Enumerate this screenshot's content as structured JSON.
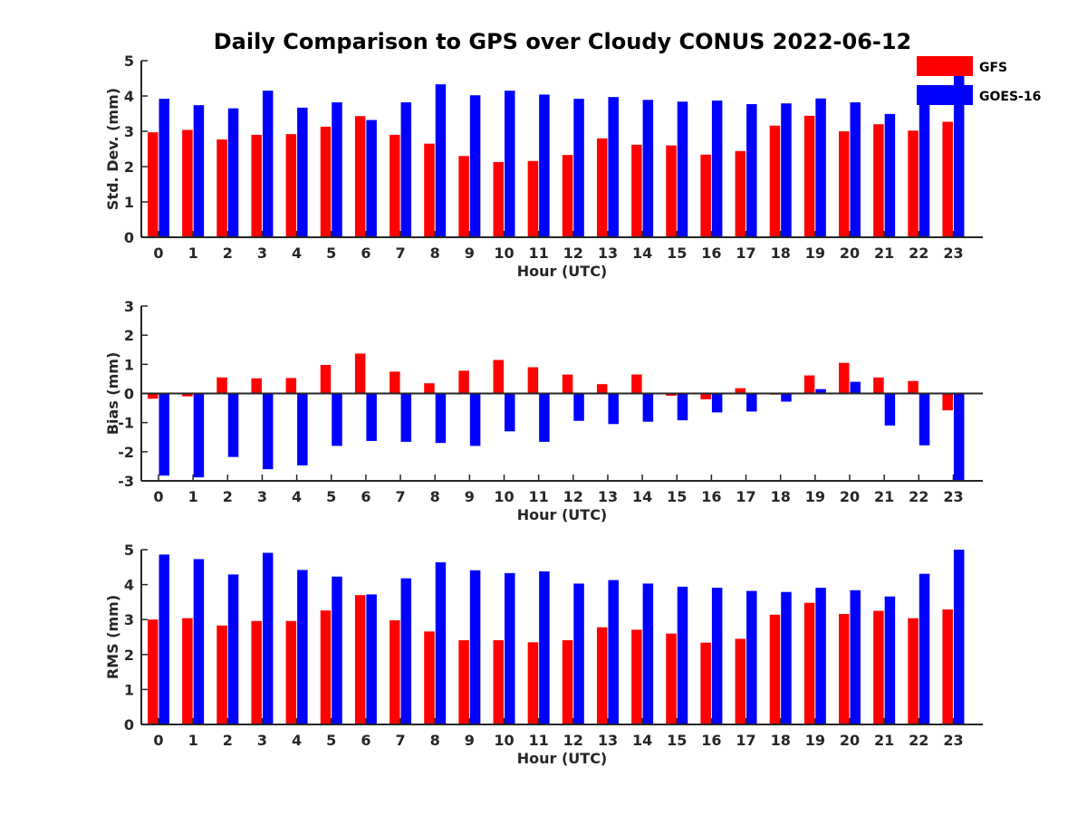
{
  "figure_title": "Daily Comparison to GPS over Cloudy CONUS 2022-06-12",
  "colors": {
    "GFS": "#ff0000",
    "GOES-16": "#0000ff",
    "axis": "#262626"
  },
  "legend": {
    "position": "top-right",
    "entries": [
      "GFS",
      "GOES-16"
    ]
  },
  "chart_data": [
    {
      "type": "bar",
      "title": "Daily Comparison to GPS over Cloudy CONUS 2022-06-12",
      "xlabel": "Hour (UTC)",
      "ylabel": "Std. Dev. (mm)",
      "ylim": [
        0,
        5
      ],
      "yticks": [
        0,
        1,
        2,
        3,
        4,
        5
      ],
      "categories": [
        "0",
        "1",
        "2",
        "3",
        "4",
        "5",
        "6",
        "7",
        "8",
        "9",
        "10",
        "11",
        "12",
        "13",
        "14",
        "15",
        "16",
        "17",
        "18",
        "19",
        "20",
        "21",
        "22",
        "23"
      ],
      "series": [
        {
          "name": "GFS",
          "values": [
            2.97,
            3.04,
            2.77,
            2.9,
            2.92,
            3.13,
            3.43,
            2.9,
            2.65,
            2.3,
            2.13,
            2.16,
            2.33,
            2.8,
            2.62,
            2.6,
            2.34,
            2.44,
            3.16,
            3.44,
            3.0,
            3.2,
            3.02,
            3.27
          ]
        },
        {
          "name": "GOES-16",
          "values": [
            3.92,
            3.74,
            3.65,
            4.15,
            3.67,
            3.82,
            3.32,
            3.82,
            4.33,
            4.02,
            4.15,
            4.04,
            3.92,
            3.97,
            3.89,
            3.84,
            3.87,
            3.77,
            3.79,
            3.93,
            3.82,
            3.49,
            3.93,
            4.6
          ]
        }
      ]
    },
    {
      "type": "bar",
      "title": "",
      "xlabel": "Hour (UTC)",
      "ylabel": "Bias (mm)",
      "ylim": [
        -3,
        3
      ],
      "yticks": [
        -3,
        -2,
        -1,
        0,
        1,
        2,
        3
      ],
      "categories": [
        "0",
        "1",
        "2",
        "3",
        "4",
        "5",
        "6",
        "7",
        "8",
        "9",
        "10",
        "11",
        "12",
        "13",
        "14",
        "15",
        "16",
        "17",
        "18",
        "19",
        "20",
        "21",
        "22",
        "23"
      ],
      "series": [
        {
          "name": "GFS",
          "values": [
            -0.18,
            -0.1,
            0.55,
            0.52,
            0.53,
            0.98,
            1.37,
            0.75,
            0.35,
            0.78,
            1.15,
            0.9,
            0.65,
            0.32,
            0.65,
            -0.08,
            -0.2,
            0.18,
            -0.04,
            0.62,
            1.05,
            0.55,
            0.43,
            -0.58
          ]
        },
        {
          "name": "GOES-16",
          "values": [
            -2.82,
            -2.88,
            -2.18,
            -2.6,
            -2.47,
            -1.8,
            -1.63,
            -1.66,
            -1.7,
            -1.8,
            -1.3,
            -1.66,
            -0.94,
            -1.05,
            -0.97,
            -0.92,
            -0.65,
            -0.62,
            -0.28,
            0.15,
            0.4,
            -1.1,
            -1.78,
            -3.0
          ]
        }
      ]
    },
    {
      "type": "bar",
      "title": "",
      "xlabel": "Hour (UTC)",
      "ylabel": "RMS (mm)",
      "ylim": [
        0,
        5
      ],
      "yticks": [
        0,
        1,
        2,
        3,
        4,
        5
      ],
      "categories": [
        "0",
        "1",
        "2",
        "3",
        "4",
        "5",
        "6",
        "7",
        "8",
        "9",
        "10",
        "11",
        "12",
        "13",
        "14",
        "15",
        "16",
        "17",
        "18",
        "19",
        "20",
        "21",
        "22",
        "23"
      ],
      "series": [
        {
          "name": "GFS",
          "values": [
            3.0,
            3.04,
            2.83,
            2.96,
            2.96,
            3.26,
            3.7,
            2.98,
            2.66,
            2.41,
            2.41,
            2.35,
            2.41,
            2.78,
            2.71,
            2.6,
            2.34,
            2.45,
            3.14,
            3.48,
            3.16,
            3.25,
            3.04,
            3.29
          ]
        },
        {
          "name": "GOES-16",
          "values": [
            4.86,
            4.73,
            4.29,
            4.91,
            4.42,
            4.23,
            3.72,
            4.18,
            4.64,
            4.41,
            4.33,
            4.38,
            4.03,
            4.13,
            4.03,
            3.94,
            3.91,
            3.82,
            3.79,
            3.91,
            3.84,
            3.66,
            4.31,
            5.0
          ]
        }
      ]
    }
  ]
}
